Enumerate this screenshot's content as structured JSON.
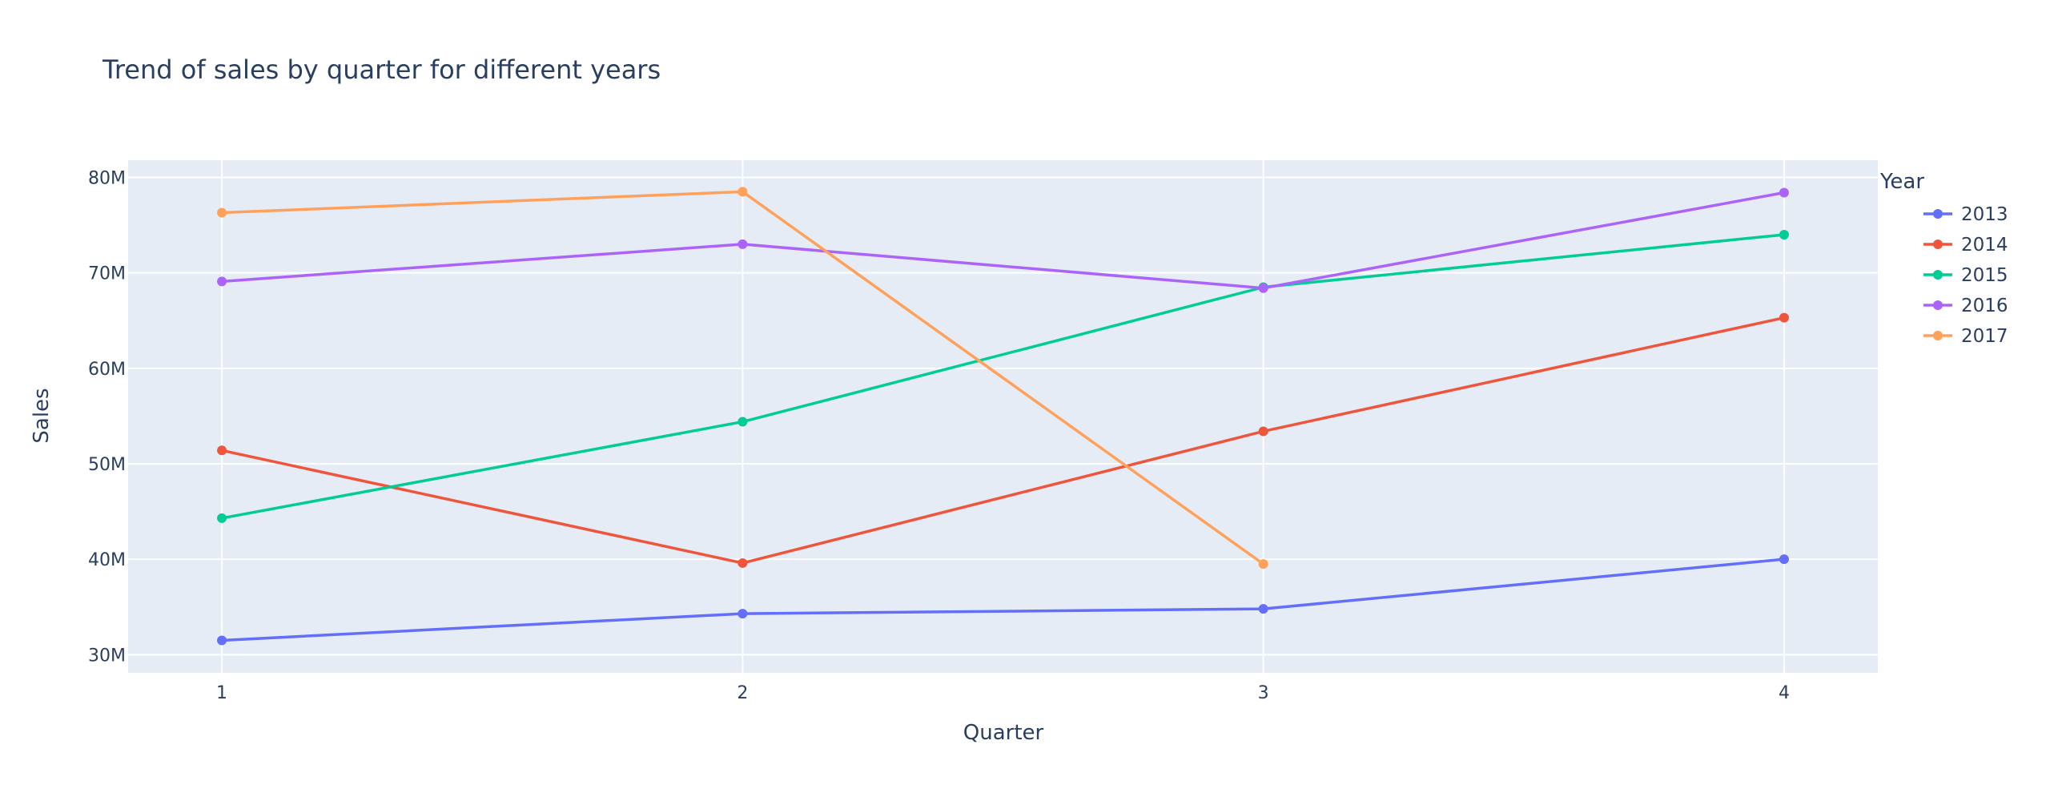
{
  "chart_data": {
    "type": "line",
    "title": "Trend of sales by quarter for different years",
    "xlabel": "Quarter",
    "ylabel": "Sales",
    "x": [
      1,
      2,
      3,
      4
    ],
    "x_tick_labels": [
      "1",
      "2",
      "3",
      "4"
    ],
    "y_tick_values": [
      30000000,
      40000000,
      50000000,
      60000000,
      70000000,
      80000000
    ],
    "y_tick_labels": [
      "30M",
      "40M",
      "50M",
      "60M",
      "70M",
      "80M"
    ],
    "xlim": [
      0.82,
      4.18
    ],
    "ylim": [
      28100000,
      81800000
    ],
    "grid": true,
    "legend": {
      "title": "Year",
      "placement": "right"
    },
    "series": [
      {
        "name": "2013",
        "color": "#636efa",
        "x": [
          1,
          2,
          3,
          4
        ],
        "values": [
          31500000,
          34300000,
          34800000,
          40000000
        ]
      },
      {
        "name": "2014",
        "color": "#EF553B",
        "x": [
          1,
          2,
          3,
          4
        ],
        "values": [
          51400000,
          39600000,
          53400000,
          65300000
        ]
      },
      {
        "name": "2015",
        "color": "#00cc96",
        "x": [
          1,
          2,
          3,
          4
        ],
        "values": [
          44300000,
          54400000,
          68500000,
          74000000
        ]
      },
      {
        "name": "2016",
        "color": "#ab63fa",
        "x": [
          1,
          2,
          3,
          4
        ],
        "values": [
          69100000,
          73000000,
          68400000,
          78400000
        ]
      },
      {
        "name": "2017",
        "color": "#FFA15A",
        "x": [
          1,
          2,
          3
        ],
        "values": [
          76300000,
          78500000,
          39500000
        ]
      }
    ],
    "colors": {
      "plot_background": "#e5ecf6",
      "grid": "#ffffff",
      "text": "#2a3f5f"
    }
  }
}
